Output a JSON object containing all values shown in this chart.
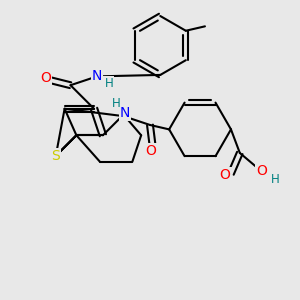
{
  "background_color": "#e8e8e8",
  "bond_color": "#000000",
  "atom_colors": {
    "S": "#cccc00",
    "N": "#0000ff",
    "O": "#ff0000",
    "H": "#008080",
    "C": "#000000"
  },
  "figsize": [
    3.0,
    3.0
  ],
  "dpi": 100
}
